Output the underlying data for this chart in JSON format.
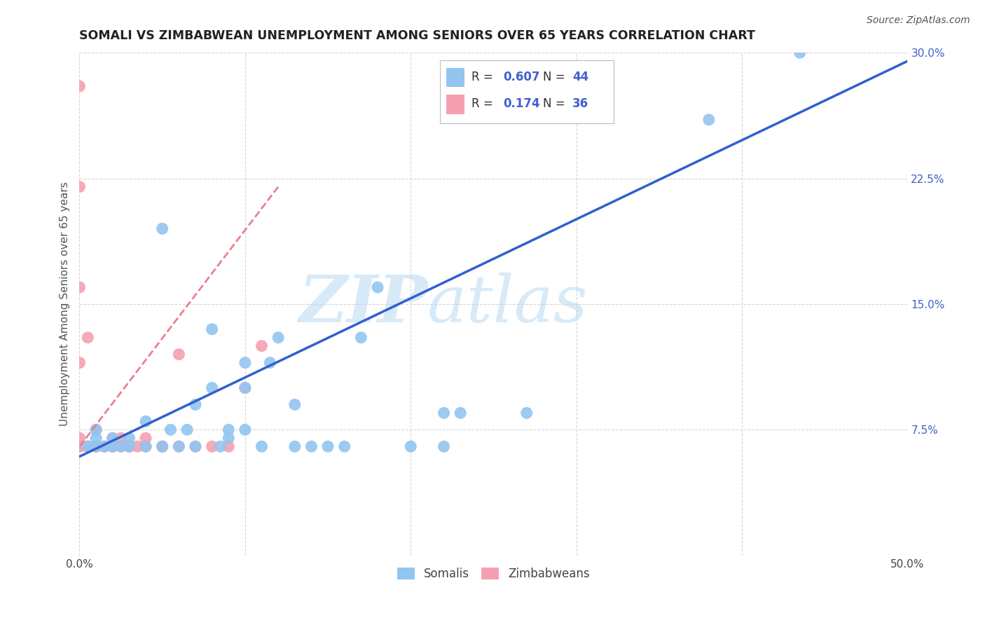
{
  "title": "SOMALI VS ZIMBABWEAN UNEMPLOYMENT AMONG SENIORS OVER 65 YEARS CORRELATION CHART",
  "source": "Source: ZipAtlas.com",
  "ylabel": "Unemployment Among Seniors over 65 years",
  "xlim": [
    0.0,
    0.5
  ],
  "ylim": [
    0.0,
    0.3
  ],
  "xticks": [
    0.0,
    0.1,
    0.2,
    0.3,
    0.4,
    0.5
  ],
  "xticklabels": [
    "0.0%",
    "",
    "",
    "",
    "",
    "50.0%"
  ],
  "yticks": [
    0.0,
    0.075,
    0.15,
    0.225,
    0.3
  ],
  "yticklabels_right": [
    "",
    "7.5%",
    "15.0%",
    "22.5%",
    "30.0%"
  ],
  "somali_R": 0.607,
  "somali_N": 44,
  "zimbabwe_R": 0.174,
  "zimbabwe_N": 36,
  "somali_color": "#92C5F0",
  "zimbabwe_color": "#F5A0B0",
  "trend_somali_color": "#3060D0",
  "trend_zimbabwe_color": "#E88090",
  "legend_text_color": "#4060D0",
  "watermark_color": "#D8EAF8",
  "somali_x": [
    0.005,
    0.01,
    0.01,
    0.01,
    0.015,
    0.02,
    0.02,
    0.025,
    0.03,
    0.03,
    0.04,
    0.04,
    0.05,
    0.055,
    0.06,
    0.065,
    0.07,
    0.07,
    0.08,
    0.085,
    0.09,
    0.09,
    0.1,
    0.1,
    0.1,
    0.11,
    0.115,
    0.12,
    0.13,
    0.13,
    0.14,
    0.15,
    0.16,
    0.17,
    0.18,
    0.2,
    0.22,
    0.22,
    0.23,
    0.27,
    0.38,
    0.05,
    0.08,
    0.435
  ],
  "somali_y": [
    0.065,
    0.065,
    0.07,
    0.075,
    0.065,
    0.065,
    0.07,
    0.065,
    0.065,
    0.07,
    0.065,
    0.08,
    0.065,
    0.075,
    0.065,
    0.075,
    0.065,
    0.09,
    0.1,
    0.065,
    0.07,
    0.075,
    0.075,
    0.1,
    0.115,
    0.065,
    0.115,
    0.13,
    0.065,
    0.09,
    0.065,
    0.065,
    0.065,
    0.13,
    0.16,
    0.065,
    0.065,
    0.085,
    0.085,
    0.085,
    0.26,
    0.195,
    0.135,
    0.3
  ],
  "zimbabwe_x": [
    0.0,
    0.0,
    0.0,
    0.0,
    0.0,
    0.0,
    0.0,
    0.005,
    0.005,
    0.01,
    0.01,
    0.01,
    0.015,
    0.015,
    0.02,
    0.02,
    0.02,
    0.025,
    0.025,
    0.03,
    0.03,
    0.03,
    0.035,
    0.04,
    0.04,
    0.05,
    0.05,
    0.06,
    0.06,
    0.07,
    0.08,
    0.09,
    0.1,
    0.11,
    0.0,
    0.005
  ],
  "zimbabwe_y": [
    0.065,
    0.065,
    0.065,
    0.07,
    0.115,
    0.16,
    0.22,
    0.065,
    0.065,
    0.065,
    0.065,
    0.075,
    0.065,
    0.065,
    0.065,
    0.065,
    0.07,
    0.065,
    0.07,
    0.065,
    0.065,
    0.065,
    0.065,
    0.065,
    0.07,
    0.065,
    0.065,
    0.065,
    0.12,
    0.065,
    0.065,
    0.065,
    0.1,
    0.125,
    0.28,
    0.13
  ]
}
